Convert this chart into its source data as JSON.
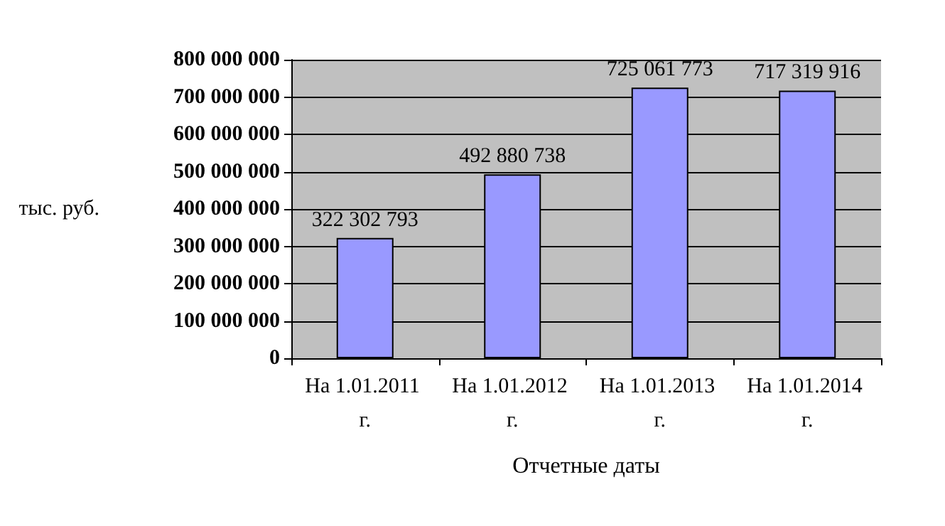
{
  "chart_data": {
    "type": "bar",
    "xlabel": "Отчетные даты",
    "ylabel": "тыс. руб.",
    "categories": [
      "На 1.01.2011 г.",
      "На 1.01.2012 г.",
      "На 1.01.2013 г.",
      "На 1.01.2014 г."
    ],
    "values": [
      322302793,
      492880738,
      725061773,
      717319916
    ],
    "value_labels": [
      "322 302 793",
      "492 880 738",
      "725 061 773",
      "717 319 916"
    ],
    "color": "#9999ff",
    "ylim": [
      0,
      800000000
    ],
    "yticks": [
      {
        "value": 0,
        "label": "0"
      },
      {
        "value": 100000000,
        "label": "100 000 000"
      },
      {
        "value": 200000000,
        "label": "200 000 000"
      },
      {
        "value": 300000000,
        "label": "300 000 000"
      },
      {
        "value": 400000000,
        "label": "400 000 000"
      },
      {
        "value": 500000000,
        "label": "500 000 000"
      },
      {
        "value": 600000000,
        "label": "600 000 000"
      },
      {
        "value": 700000000,
        "label": "700 000 000"
      },
      {
        "value": 800000000,
        "label": "800 000 000"
      }
    ],
    "grid": "y"
  }
}
